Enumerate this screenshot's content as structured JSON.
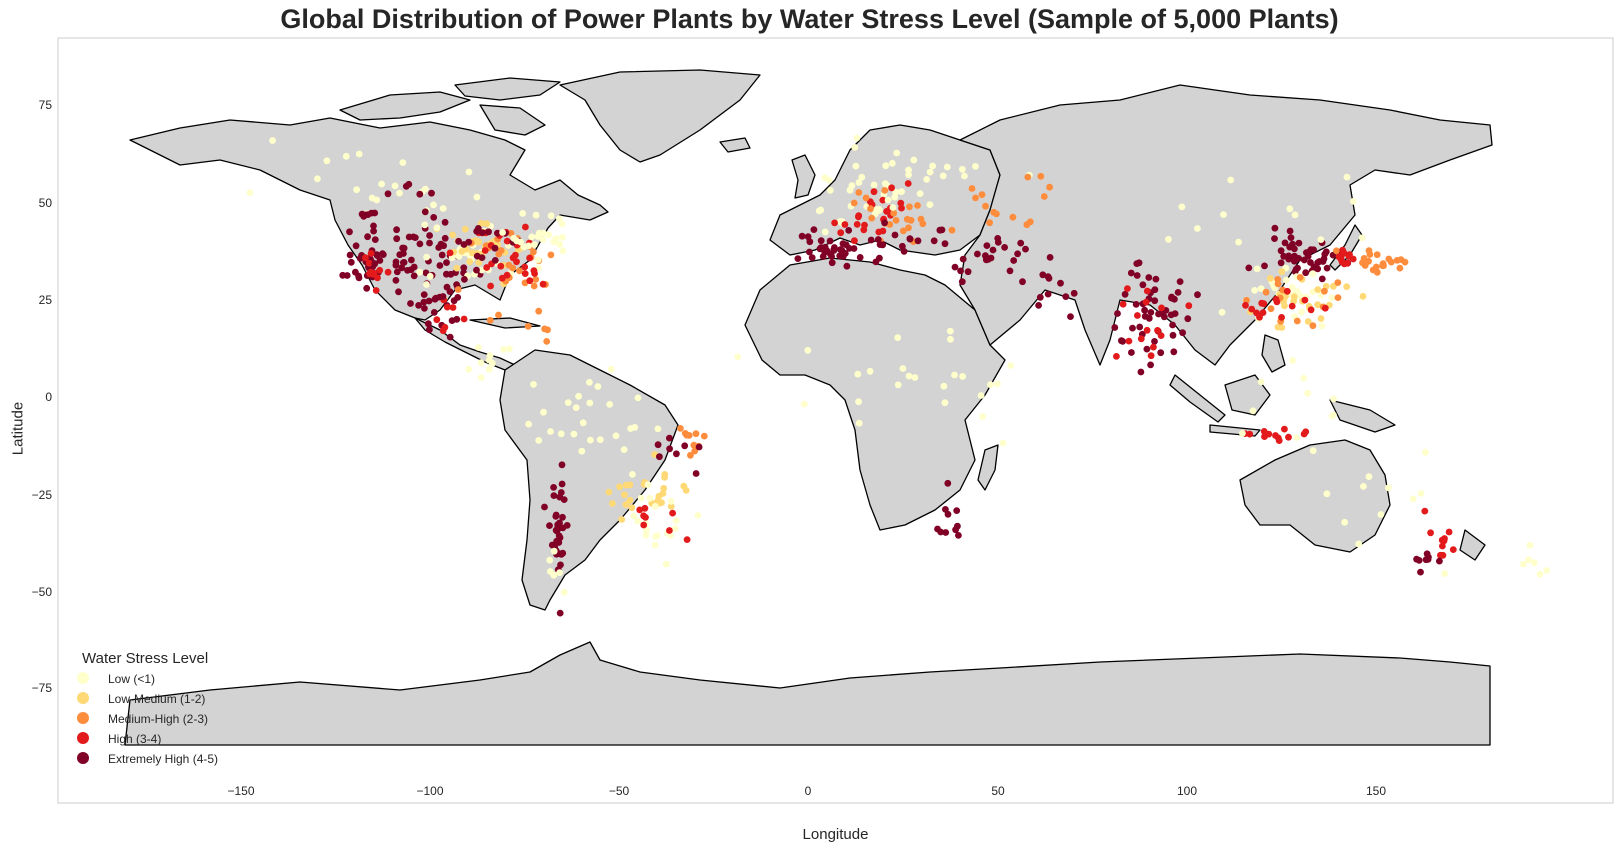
{
  "title": "Global Distribution of Power Plants by Water Stress Level (Sample of 5,000 Plants)",
  "colors": {
    "land": "#d3d3d3",
    "coast": "#000000",
    "frame": "#cccccc",
    "text": "#262626"
  },
  "chart_data": {
    "type": "scatter",
    "title": "Global Distribution of Power Plants by Water Stress Level (Sample of 5,000 Plants)",
    "xlabel": "Longitude",
    "ylabel": "Latitude",
    "xlim": [
      -196,
      194
    ],
    "ylim": [
      -99,
      92
    ],
    "xticks": [
      -150,
      -100,
      -50,
      0,
      50,
      100,
      150
    ],
    "yticks": [
      75,
      50,
      25,
      0,
      -25,
      -50,
      -75
    ],
    "xtick_labels": [
      "−150",
      "−100",
      "−50",
      "0",
      "50",
      "100",
      "150"
    ],
    "ytick_labels": [
      "75",
      "50",
      "25",
      "0",
      "−25",
      "−50",
      "−75"
    ],
    "grid": false,
    "legend": {
      "title": "Water Stress Level",
      "placement": "lower-left",
      "entries": [
        {
          "label": "Low (<1)",
          "color": "#ffffcc"
        },
        {
          "label": "Low-Medium (1-2)",
          "color": "#fed976"
        },
        {
          "label": "Medium-High (2-3)",
          "color": "#fd8d3c"
        },
        {
          "label": "High (3-4)",
          "color": "#e31a1c"
        },
        {
          "label": "Extremely High (4-5)",
          "color": "#800026"
        }
      ]
    },
    "clusters": [
      {
        "c": 4,
        "lon": -118.0,
        "lat": 35.5,
        "sx": 2.5,
        "sy": 3.0,
        "n": 30
      },
      {
        "c": 3,
        "lon": -117.0,
        "lat": 34.0,
        "sx": 2.0,
        "sy": 2.0,
        "n": 12
      },
      {
        "c": 4,
        "lon": -110.0,
        "lat": 38.0,
        "sx": 4.0,
        "sy": 5.0,
        "n": 22
      },
      {
        "c": 4,
        "lon": -100.0,
        "lat": 36.0,
        "sx": 5.0,
        "sy": 5.0,
        "n": 30
      },
      {
        "c": 0,
        "lon": -92.0,
        "lat": 38.0,
        "sx": 6.0,
        "sy": 4.0,
        "n": 30
      },
      {
        "c": 1,
        "lon": -88.0,
        "lat": 39.0,
        "sx": 6.0,
        "sy": 4.0,
        "n": 30
      },
      {
        "c": 2,
        "lon": -84.0,
        "lat": 37.0,
        "sx": 6.0,
        "sy": 5.0,
        "n": 25
      },
      {
        "c": 3,
        "lon": -86.0,
        "lat": 38.0,
        "sx": 7.0,
        "sy": 4.0,
        "n": 20
      },
      {
        "c": 4,
        "lon": -89.0,
        "lat": 41.0,
        "sx": 6.0,
        "sy": 3.0,
        "n": 20
      },
      {
        "c": 0,
        "lon": -75.0,
        "lat": 42.0,
        "sx": 4.0,
        "sy": 3.0,
        "n": 25
      },
      {
        "c": 3,
        "lon": -80.0,
        "lat": 35.0,
        "sx": 3.0,
        "sy": 3.0,
        "n": 10
      },
      {
        "c": 0,
        "lon": -110.0,
        "lat": 51.0,
        "sx": 7.0,
        "sy": 3.0,
        "n": 12
      },
      {
        "c": 4,
        "lon": -106.0,
        "lat": 52.0,
        "sx": 6.0,
        "sy": 2.0,
        "n": 6
      },
      {
        "c": 4,
        "lon": -120.0,
        "lat": 46.0,
        "sx": 2.0,
        "sy": 3.0,
        "n": 10
      },
      {
        "c": 4,
        "lon": -102.0,
        "lat": 24.0,
        "sx": 4.0,
        "sy": 4.0,
        "n": 18
      },
      {
        "c": 3,
        "lon": -100.0,
        "lat": 22.0,
        "sx": 4.0,
        "sy": 3.0,
        "n": 6
      },
      {
        "c": 0,
        "lon": -125.0,
        "lat": 57.0,
        "sx": 15.0,
        "sy": 4.0,
        "n": 10
      },
      {
        "c": 0,
        "lon": -87.0,
        "lat": 13.0,
        "sx": 4.0,
        "sy": 3.0,
        "n": 10
      },
      {
        "c": 2,
        "lon": -80.0,
        "lat": 20.0,
        "sx": 4.0,
        "sy": 2.0,
        "n": 6
      },
      {
        "c": 0,
        "lon": -62.0,
        "lat": -5.0,
        "sx": 9.0,
        "sy": 6.0,
        "n": 25
      },
      {
        "c": 1,
        "lon": -49.0,
        "lat": -22.0,
        "sx": 5.0,
        "sy": 4.0,
        "n": 25
      },
      {
        "c": 0,
        "lon": -47.0,
        "lat": -26.0,
        "sx": 5.0,
        "sy": 4.0,
        "n": 20
      },
      {
        "c": 3,
        "lon": -48.0,
        "lat": -28.0,
        "sx": 4.0,
        "sy": 3.0,
        "n": 8
      },
      {
        "c": 4,
        "lon": -70.5,
        "lat": -30.0,
        "sx": 1.0,
        "sy": 7.0,
        "n": 35
      },
      {
        "c": 2,
        "lon": -37.0,
        "lat": -8.0,
        "sx": 2.0,
        "sy": 3.0,
        "n": 10
      },
      {
        "c": 4,
        "lon": -40.0,
        "lat": -10.0,
        "sx": 3.0,
        "sy": 3.0,
        "n": 8
      },
      {
        "c": 0,
        "lon": -72.0,
        "lat": -40.0,
        "sx": 2.0,
        "sy": 2.0,
        "n": 6
      },
      {
        "c": 0,
        "lon": 5.0,
        "lat": 52.0,
        "sx": 6.0,
        "sy": 6.0,
        "n": 30
      },
      {
        "c": 3,
        "lon": 8.0,
        "lat": 48.0,
        "sx": 5.0,
        "sy": 3.0,
        "n": 25
      },
      {
        "c": 2,
        "lon": 12.0,
        "lat": 48.0,
        "sx": 6.0,
        "sy": 4.0,
        "n": 20
      },
      {
        "c": 4,
        "lon": -3.0,
        "lat": 40.0,
        "sx": 3.0,
        "sy": 2.0,
        "n": 30
      },
      {
        "c": 4,
        "lon": 14.0,
        "lat": 41.0,
        "sx": 6.0,
        "sy": 3.0,
        "n": 20
      },
      {
        "c": 0,
        "lon": 22.0,
        "lat": 58.0,
        "sx": 8.0,
        "sy": 5.0,
        "n": 20
      },
      {
        "c": 2,
        "lon": 40.0,
        "lat": 52.0,
        "sx": 8.0,
        "sy": 4.0,
        "n": 15
      },
      {
        "c": 4,
        "lon": 40.0,
        "lat": 38.0,
        "sx": 8.0,
        "sy": 3.0,
        "n": 20
      },
      {
        "c": 0,
        "lon": 0.0,
        "lat": 6.0,
        "sx": 15.0,
        "sy": 6.0,
        "n": 12
      },
      {
        "c": 4,
        "lon": 27.0,
        "lat": -28.0,
        "sx": 3.0,
        "sy": 3.0,
        "n": 10
      },
      {
        "c": 0,
        "lon": 32.0,
        "lat": 2.0,
        "sx": 10.0,
        "sy": 10.0,
        "n": 12
      },
      {
        "c": 4,
        "lon": 52.0,
        "lat": 30.0,
        "sx": 5.0,
        "sy": 4.0,
        "n": 12
      },
      {
        "c": 4,
        "lon": 78.0,
        "lat": 22.0,
        "sx": 4.0,
        "sy": 7.0,
        "n": 50
      },
      {
        "c": 3,
        "lon": 78.0,
        "lat": 21.0,
        "sx": 4.0,
        "sy": 7.0,
        "n": 15
      },
      {
        "c": 4,
        "lon": 116.0,
        "lat": 37.0,
        "sx": 5.0,
        "sy": 3.0,
        "n": 45
      },
      {
        "c": 0,
        "lon": 112.0,
        "lat": 28.0,
        "sx": 6.0,
        "sy": 4.0,
        "n": 30
      },
      {
        "c": 1,
        "lon": 114.0,
        "lat": 27.0,
        "sx": 6.0,
        "sy": 4.0,
        "n": 25
      },
      {
        "c": 2,
        "lon": 116.0,
        "lat": 27.0,
        "sx": 6.0,
        "sy": 4.0,
        "n": 15
      },
      {
        "c": 3,
        "lon": 110.0,
        "lat": 24.0,
        "sx": 6.0,
        "sy": 3.0,
        "n": 15
      },
      {
        "c": 2,
        "lon": 136.0,
        "lat": 36.0,
        "sx": 4.0,
        "sy": 2.0,
        "n": 20
      },
      {
        "c": 3,
        "lon": 127.0,
        "lat": 37.0,
        "sx": 1.5,
        "sy": 1.0,
        "n": 12
      },
      {
        "c": 0,
        "lon": 105.0,
        "lat": 48.0,
        "sx": 15.0,
        "sy": 6.0,
        "n": 12
      },
      {
        "c": 3,
        "lon": 108.0,
        "lat": -7.0,
        "sx": 5.0,
        "sy": 0.8,
        "n": 12
      },
      {
        "c": 0,
        "lon": 110.0,
        "lat": 2.0,
        "sx": 10.0,
        "sy": 5.0,
        "n": 10
      },
      {
        "c": 3,
        "lon": 151.0,
        "lat": -33.0,
        "sx": 1.5,
        "sy": 3.0,
        "n": 10
      },
      {
        "c": 4,
        "lon": 147.0,
        "lat": -37.0,
        "sx": 2.0,
        "sy": 1.5,
        "n": 8
      },
      {
        "c": 0,
        "lon": 135.0,
        "lat": -25.0,
        "sx": 10.0,
        "sy": 7.0,
        "n": 12
      },
      {
        "c": 0,
        "lon": 174.0,
        "lat": -40.0,
        "sx": 2.0,
        "sy": 3.0,
        "n": 6
      }
    ]
  }
}
